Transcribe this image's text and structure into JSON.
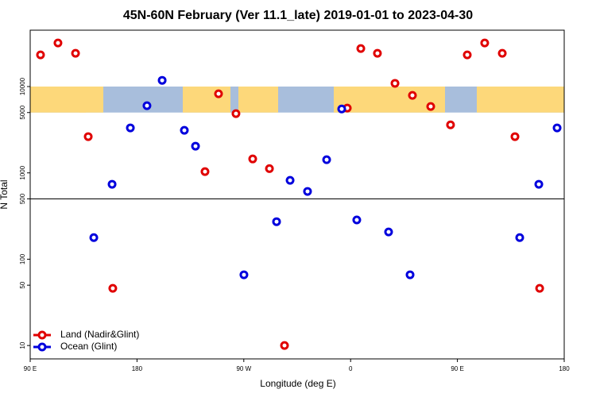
{
  "chart_data": {
    "type": "scatter",
    "title": "45N-60N February (Ver 11.1_late)   2019-01-01 to 2023-04-30",
    "xlabel": "Longitude (deg E)",
    "ylabel": "N Total",
    "xlim": [
      90,
      540
    ],
    "xticks": [
      {
        "value": 90,
        "label": "90 E"
      },
      180,
      {
        "value": 270,
        "label": "90 W"
      },
      {
        "value": 360,
        "label": "0"
      },
      {
        "value": 450,
        "label": "90 E"
      },
      {
        "value": 540,
        "label": "180"
      }
    ],
    "ylim": [
      7,
      45000
    ],
    "ylog": true,
    "yticks": [
      10,
      50,
      100,
      500,
      1000,
      5000,
      10000
    ],
    "legend": "bottom-left",
    "series": [
      {
        "name": "Land (Nadir&Glint)",
        "color": "#e00000",
        "x": [
          98.7,
          113.4,
          128.2,
          138.9,
          159.6,
          237.3,
          248.7,
          263.4,
          277.5,
          291.6,
          304.3,
          357.2,
          368.6,
          382.6,
          397.4,
          412.1,
          427.5,
          444.2,
          458.3,
          473.0,
          487.8,
          498.5,
          519.3
        ],
        "values": [
          23300,
          32000,
          24300,
          2630,
          46,
          1035,
          8240,
          4860,
          1450,
          1120,
          10,
          5630,
          27600,
          24300,
          10900,
          7900,
          5870,
          3600,
          23300,
          32000,
          24300,
          2630,
          46
        ]
      },
      {
        "name": "Ocean (Glint)",
        "color": "#0000dd",
        "x": [
          143.6,
          159.0,
          174.4,
          188.4,
          201.2,
          219.9,
          229.3,
          270.1,
          297.6,
          309.0,
          323.7,
          339.8,
          352.5,
          365.2,
          392.0,
          410.1,
          502.5,
          518.6,
          534.0
        ],
        "values": [
          178,
          738,
          3320,
          6000,
          11800,
          3110,
          2040,
          66,
          272,
          820,
          610,
          1420,
          5500,
          285,
          207,
          66,
          178,
          738,
          3320
        ]
      }
    ]
  }
}
